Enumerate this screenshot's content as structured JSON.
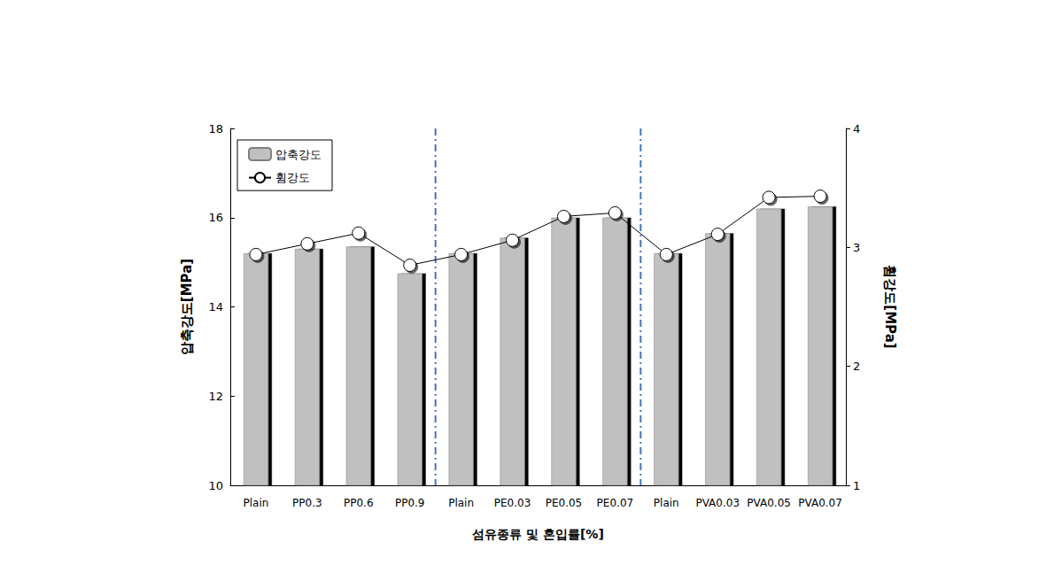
{
  "chart_data": {
    "type": "bar",
    "x_label": "섬유종류 및 혼입률[%]",
    "y_label": "압축강도[MPa]",
    "y2_label": "휨강도[MPa]",
    "categories": [
      "Plain",
      "PP0.3",
      "PP0.6",
      "PP0.9",
      "Plain",
      "PE0.03",
      "PE0.05",
      "PE0.07",
      "Plain",
      "PVA0.03",
      "PVA0.05",
      "PVA0.07"
    ],
    "series": [
      {
        "name": "압축강도",
        "type": "bar",
        "color": "#c0c0c0",
        "values": [
          15.2,
          15.3,
          15.35,
          14.75,
          15.2,
          15.55,
          16.0,
          16.0,
          15.2,
          15.65,
          16.2,
          16.25
        ]
      },
      {
        "name": "휨강도",
        "type": "line",
        "axis": "y2",
        "color": "#000000",
        "marker": "circle",
        "values": [
          2.94,
          3.03,
          3.12,
          2.85,
          2.94,
          3.06,
          3.26,
          3.29,
          2.94,
          3.11,
          3.42,
          3.43
        ]
      }
    ],
    "ylim": [
      10,
      18
    ],
    "yticks": [
      10,
      12,
      14,
      16,
      18
    ],
    "y2lim": [
      1,
      4
    ],
    "y2ticks": [
      1,
      2,
      3,
      4
    ],
    "grid": false,
    "legend": "upper left"
  }
}
